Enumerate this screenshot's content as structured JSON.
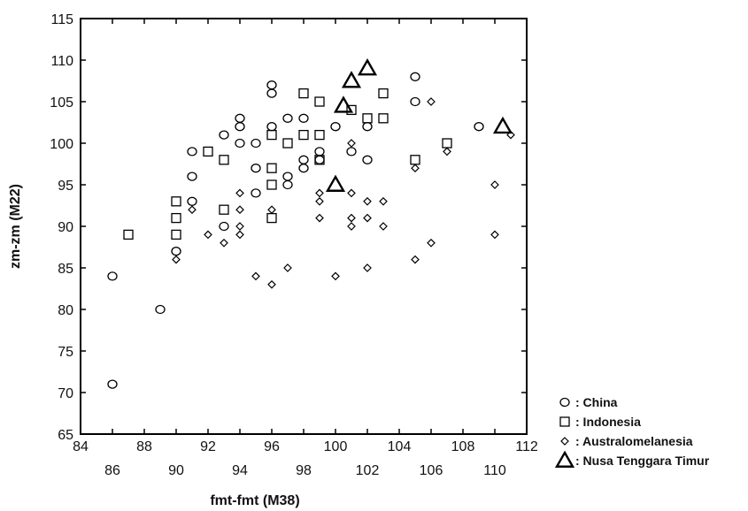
{
  "chart_data": {
    "type": "scatter",
    "xlabel": "fmt-fmt (M38)",
    "ylabel": "zm-zm (M22)",
    "xlim": [
      84,
      112
    ],
    "ylim": [
      65,
      115
    ],
    "x_ticks_top": [
      84,
      88,
      92,
      96,
      100,
      104,
      108,
      112
    ],
    "x_ticks_bottom": [
      86,
      90,
      94,
      98,
      102,
      106,
      110
    ],
    "y_ticks": [
      65,
      70,
      75,
      80,
      85,
      90,
      95,
      100,
      105,
      110,
      115
    ],
    "grid": false,
    "legend_position": "bottom-right, outside plot",
    "series": [
      {
        "name": ": China",
        "marker": "circle",
        "points": [
          [
            86,
            84
          ],
          [
            86,
            71
          ],
          [
            89,
            80
          ],
          [
            90,
            87
          ],
          [
            91,
            99
          ],
          [
            91,
            96
          ],
          [
            91,
            93
          ],
          [
            93,
            101
          ],
          [
            93,
            90
          ],
          [
            94,
            103
          ],
          [
            94,
            102
          ],
          [
            94,
            100
          ],
          [
            95,
            100
          ],
          [
            95,
            97
          ],
          [
            95,
            94
          ],
          [
            96,
            107
          ],
          [
            96,
            106
          ],
          [
            96,
            102
          ],
          [
            97,
            103
          ],
          [
            97,
            96
          ],
          [
            97,
            95
          ],
          [
            98,
            103
          ],
          [
            98,
            98
          ],
          [
            98,
            97
          ],
          [
            99,
            99
          ],
          [
            99,
            98
          ],
          [
            100,
            102
          ],
          [
            101,
            99
          ],
          [
            102,
            102
          ],
          [
            102,
            98
          ],
          [
            105,
            108
          ],
          [
            105,
            105
          ],
          [
            109,
            102
          ]
        ]
      },
      {
        "name": ": Indonesia",
        "marker": "square",
        "points": [
          [
            87,
            89
          ],
          [
            90,
            93
          ],
          [
            90,
            91
          ],
          [
            90,
            89
          ],
          [
            92,
            99
          ],
          [
            93,
            98
          ],
          [
            93,
            92
          ],
          [
            96,
            101
          ],
          [
            96,
            97
          ],
          [
            96,
            95
          ],
          [
            96,
            91
          ],
          [
            97,
            100
          ],
          [
            98,
            106
          ],
          [
            98,
            101
          ],
          [
            99,
            105
          ],
          [
            99,
            101
          ],
          [
            99,
            98
          ],
          [
            101,
            104
          ],
          [
            102,
            103
          ],
          [
            103,
            106
          ],
          [
            103,
            103
          ],
          [
            105,
            98
          ],
          [
            107,
            100
          ]
        ]
      },
      {
        "name": ": Australomelanesia",
        "marker": "diamond",
        "points": [
          [
            90,
            86
          ],
          [
            91,
            92
          ],
          [
            92,
            89
          ],
          [
            93,
            88
          ],
          [
            94,
            94
          ],
          [
            94,
            92
          ],
          [
            94,
            90
          ],
          [
            94,
            89
          ],
          [
            95,
            84
          ],
          [
            96,
            92
          ],
          [
            96,
            83
          ],
          [
            97,
            85
          ],
          [
            99,
            94
          ],
          [
            99,
            93
          ],
          [
            99,
            91
          ],
          [
            100,
            84
          ],
          [
            101,
            100
          ],
          [
            101,
            94
          ],
          [
            101,
            91
          ],
          [
            101,
            90
          ],
          [
            102,
            93
          ],
          [
            102,
            91
          ],
          [
            102,
            85
          ],
          [
            103,
            93
          ],
          [
            103,
            90
          ],
          [
            105,
            97
          ],
          [
            105,
            86
          ],
          [
            106,
            105
          ],
          [
            106,
            88
          ],
          [
            107,
            99
          ],
          [
            110,
            95
          ],
          [
            110,
            89
          ],
          [
            111,
            101
          ]
        ]
      },
      {
        "name": ": Nusa Tenggara Timur",
        "marker": "triangle",
        "points": [
          [
            100,
            95
          ],
          [
            100.5,
            104.5
          ],
          [
            101,
            107.5
          ],
          [
            102,
            109
          ],
          [
            110.5,
            102
          ]
        ]
      }
    ]
  }
}
